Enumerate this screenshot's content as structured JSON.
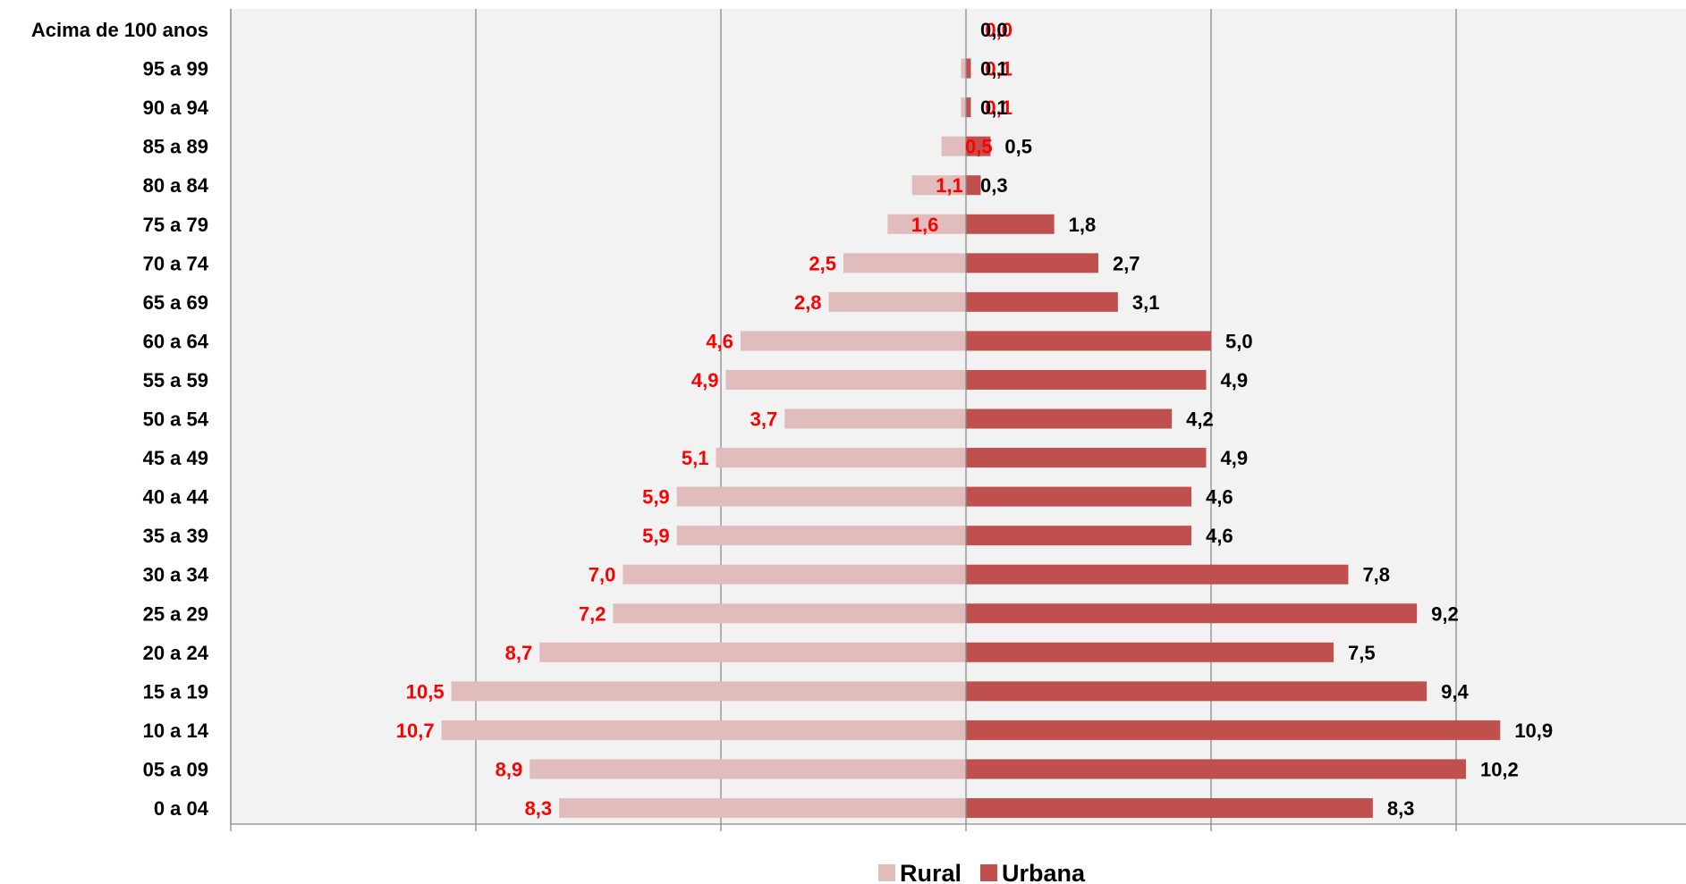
{
  "chart_data": {
    "type": "bar",
    "orientation": "horizontal",
    "layout": "population-pyramid",
    "categories": [
      "Acima de 100 anos",
      "95 a 99",
      "90 a 94",
      "85 a 89",
      "80 a 84",
      "75 a 79",
      "70 a 74",
      "65 a 69",
      "60 a 64",
      "55 a 59",
      "50 a 54",
      "45 a 49",
      "40 a 44",
      "35 a 39",
      "30 a 34",
      "25 a 29",
      "20 a 24",
      "15 a 19",
      "10 a 14",
      "05 a 09",
      "0 a 04"
    ],
    "series": [
      {
        "name": "Rural",
        "color": "#e0bcbc",
        "label_color": "#ff0000",
        "direction": "left",
        "values": [
          0.0,
          0.1,
          0.1,
          0.5,
          1.1,
          1.6,
          2.5,
          2.8,
          4.6,
          4.9,
          3.7,
          5.1,
          5.9,
          5.9,
          7.0,
          7.2,
          8.7,
          10.5,
          10.7,
          8.9,
          8.3
        ],
        "labels": [
          "0,0",
          "0,1",
          "0,1",
          "0,5",
          "1,1",
          "1,6",
          "2,5",
          "2,8",
          "4,6",
          "4,9",
          "3,7",
          "5,1",
          "5,9",
          "5,9",
          "7,0",
          "7,2",
          "8,7",
          "10,5",
          "10,7",
          "8,9",
          "8,3"
        ]
      },
      {
        "name": "Urbana",
        "color": "#c0504d",
        "label_color": "#000000",
        "direction": "right",
        "values": [
          0.0,
          0.1,
          0.1,
          0.5,
          0.3,
          1.8,
          2.7,
          3.1,
          5.0,
          4.9,
          4.2,
          4.9,
          4.6,
          4.6,
          7.8,
          9.2,
          7.5,
          9.4,
          10.9,
          10.2,
          8.3
        ],
        "labels": [
          "0,0",
          "0,1",
          "0,1",
          "0,5",
          "0,3",
          "1,8",
          "2,7",
          "3,1",
          "5,0",
          "4,9",
          "4,2",
          "4,9",
          "4,6",
          "4,6",
          "7,8",
          "9,2",
          "7,5",
          "9,4",
          "10,9",
          "10,2",
          "8,3"
        ]
      }
    ],
    "xlim": [
      -15,
      15
    ],
    "grid": true,
    "legend_position": "bottom-center",
    "plot_background": "#f2f2f2"
  }
}
